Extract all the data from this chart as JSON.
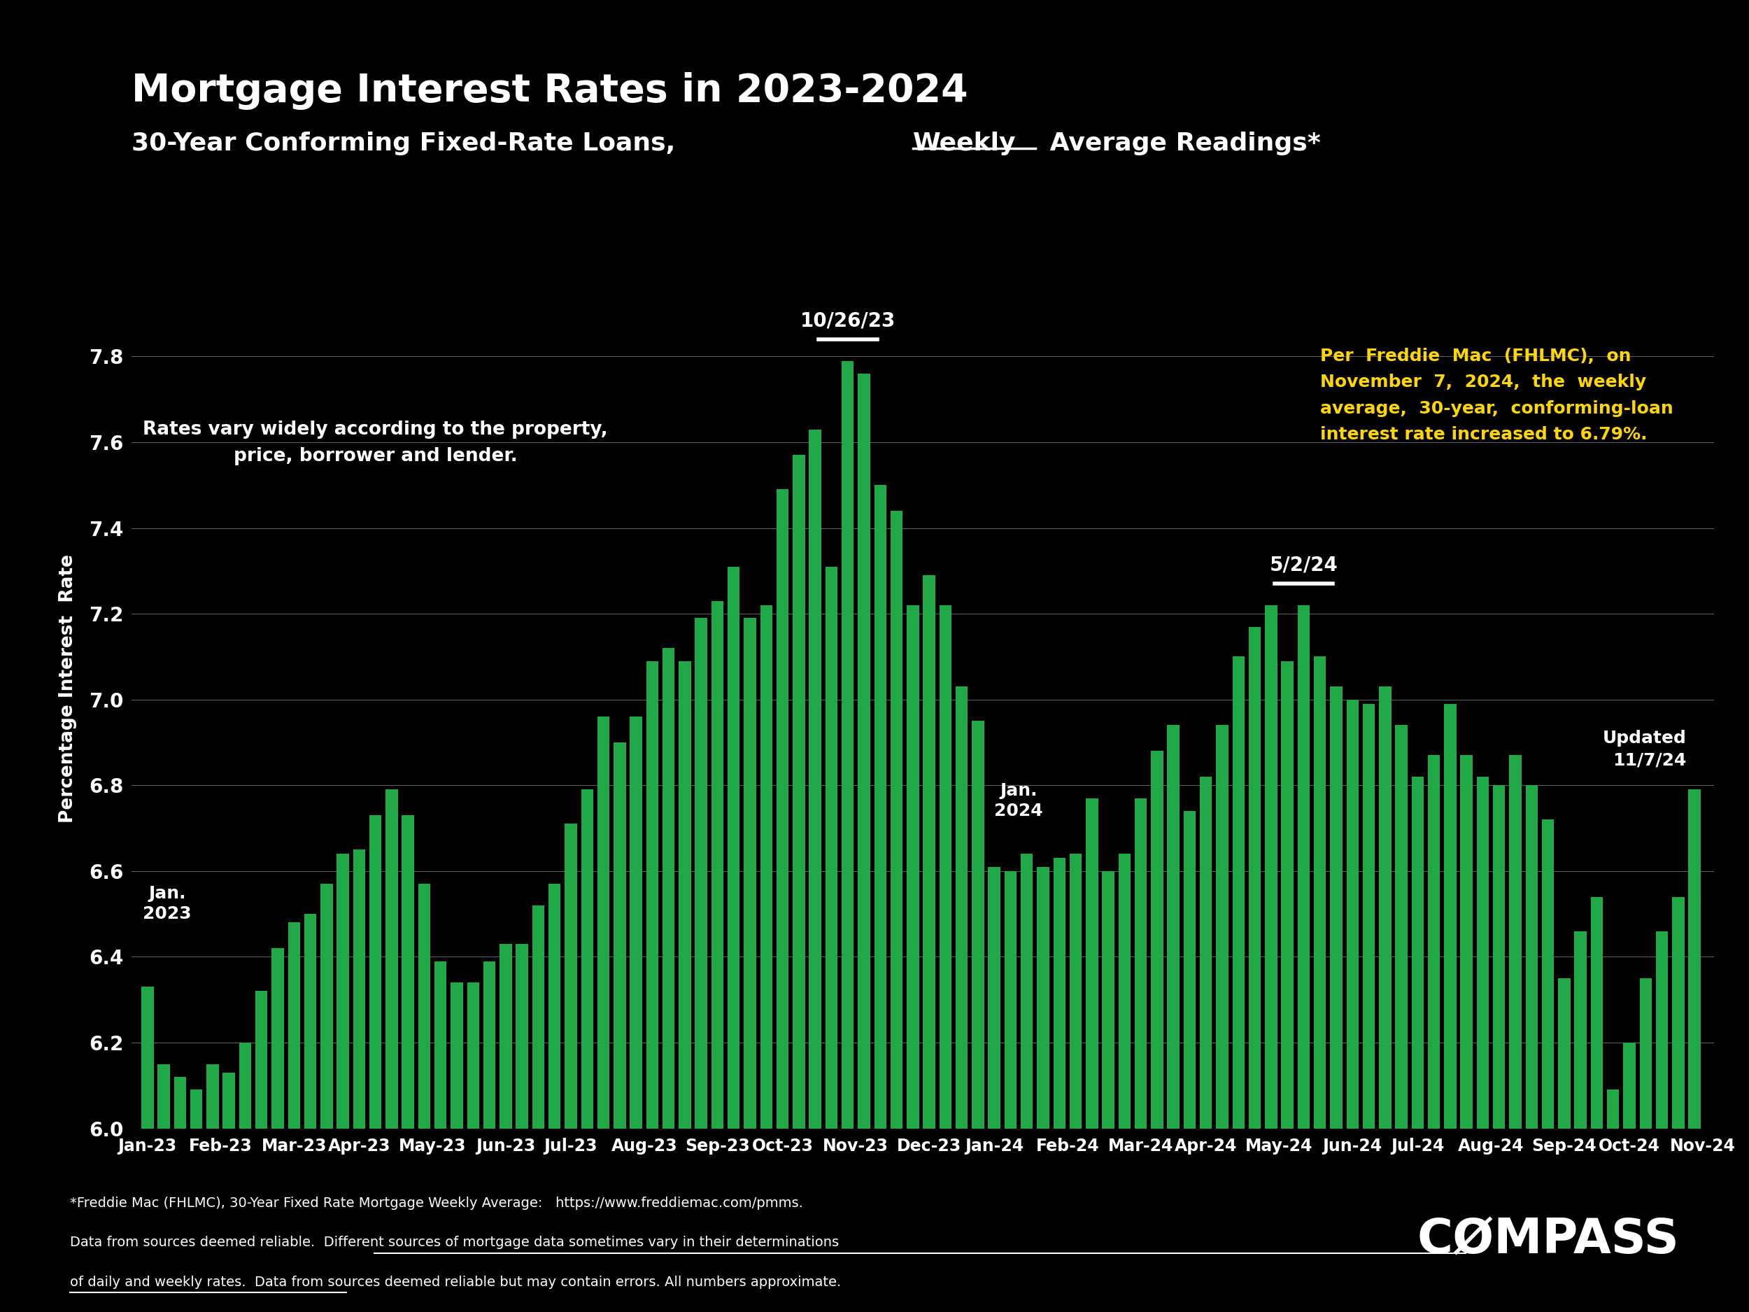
{
  "title": "Mortgage Interest Rates in 2023-2024",
  "subtitle_part1": "30-Year Conforming Fixed-Rate Loans, ",
  "subtitle_weekly": "Weekly",
  "subtitle_part2": " Average Readings*",
  "ylabel": "Percentage Interest  Rate",
  "background_color": "#000000",
  "bar_color": "#1faa47",
  "ylim": [
    6.0,
    8.05
  ],
  "yticks": [
    6.0,
    6.2,
    6.4,
    6.6,
    6.8,
    7.0,
    7.2,
    7.4,
    7.6,
    7.8
  ],
  "text_note1": "Rates vary widely according to the property,\nprice, borrower and lender.",
  "text_note2": "Per  Freddie  Mac  (FHLMC),  on\nNovember  7,  2024,  the  weekly\naverage,  30-year,  conforming-loan\ninterest rate increased to 6.79%.",
  "footer_line1": "*Freddie Mac (FHLMC), 30-Year Fixed Rate Mortgage Weekly Average:   https://www.freddiemac.com/pmms.",
  "footer_line2": "Data from sources deemed reliable.  Different sources of mortgage data sometimes vary in their determinations",
  "footer_line3": "of daily and weekly rates.  Data from sources deemed reliable but may contain errors. All numbers approximate.",
  "xtick_labels": [
    "Jan-23",
    "Feb-23",
    "Mar-23",
    "Apr-23",
    "May-23",
    "Jun-23",
    "Jul-23",
    "Aug-23",
    "Sep-23",
    "Oct-23",
    "Nov-23",
    "Dec-23",
    "Jan-24",
    "Feb-24",
    "Mar-24",
    "Apr-24",
    "May-24",
    "Jun-24",
    "Jul-24",
    "Aug-24",
    "Sep-24",
    "Oct-24",
    "Nov-24"
  ],
  "month_positions": [
    0,
    4.5,
    9,
    13,
    17.5,
    22,
    26,
    30.5,
    35,
    39,
    43.5,
    48,
    52,
    56.5,
    61,
    65,
    69.5,
    74,
    78,
    82.5,
    87,
    91,
    95.5
  ],
  "peak1_idx": 43,
  "peak1_label": "10/26/23",
  "peak2_idx": 71,
  "peak2_label": "5/2/24",
  "rates": [
    6.33,
    6.15,
    6.12,
    6.09,
    6.15,
    6.13,
    6.2,
    6.32,
    6.42,
    6.48,
    6.5,
    6.57,
    6.64,
    6.65,
    6.73,
    6.79,
    6.73,
    6.57,
    6.39,
    6.34,
    6.34,
    6.39,
    6.43,
    6.43,
    6.52,
    6.57,
    6.71,
    6.79,
    6.96,
    6.9,
    6.96,
    7.09,
    7.12,
    7.09,
    7.19,
    7.23,
    7.31,
    7.19,
    7.22,
    7.49,
    7.57,
    7.63,
    7.31,
    7.79,
    7.76,
    7.5,
    7.44,
    7.22,
    7.29,
    7.22,
    7.03,
    6.95,
    6.61,
    6.6,
    6.64,
    6.61,
    6.63,
    6.64,
    6.77,
    6.6,
    6.64,
    6.77,
    6.88,
    6.94,
    6.74,
    6.82,
    6.94,
    7.1,
    7.17,
    7.22,
    7.09,
    7.22,
    7.1,
    7.03,
    7.0,
    6.99,
    7.03,
    6.94,
    6.82,
    6.87,
    6.99,
    6.87,
    6.82,
    6.8,
    6.87,
    6.8,
    6.72,
    6.35,
    6.46,
    6.54,
    6.09,
    6.2,
    6.35,
    6.46,
    6.54,
    6.79
  ]
}
